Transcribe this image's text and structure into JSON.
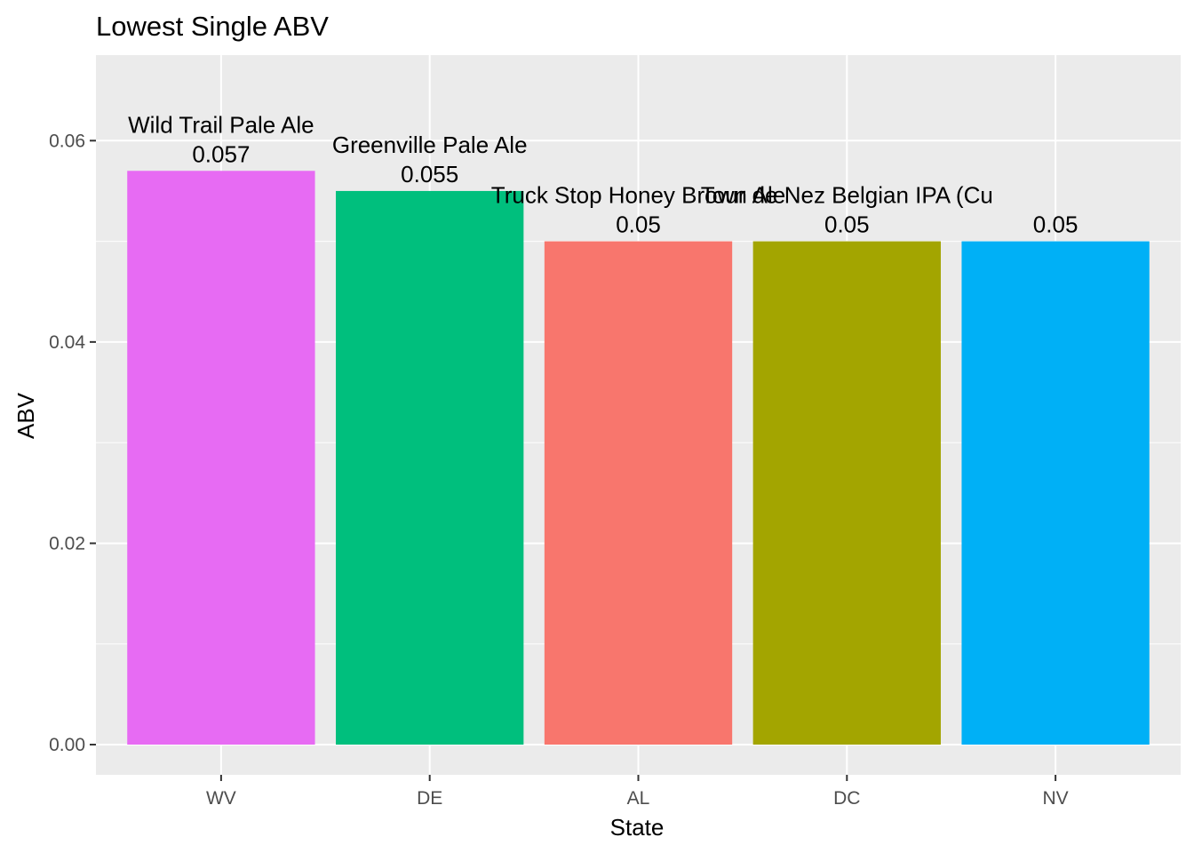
{
  "chart_data": {
    "type": "bar",
    "title": "Lowest Single ABV",
    "xlabel": "State",
    "ylabel": "ABV",
    "categories": [
      "WV",
      "DE",
      "AL",
      "DC",
      "NV"
    ],
    "values": [
      0.057,
      0.055,
      0.05,
      0.05,
      0.05
    ],
    "value_labels": [
      "0.057",
      "0.055",
      "0.05",
      "0.05",
      "0.05"
    ],
    "beer_names": [
      "Wild Trail Pale Ale",
      "Greenville Pale Ale",
      "Truck Stop Honey Brown Ale",
      "Tour de Nez Belgian IPA (Cu",
      ""
    ],
    "colors": [
      "#E76BF3",
      "#00BF7D",
      "#F8766D",
      "#A3A500",
      "#00B0F6"
    ],
    "ylim": [
      -0.003,
      0.0685
    ],
    "yticks": [
      0.0,
      0.02,
      0.04,
      0.06
    ],
    "ytick_labels": [
      "0.00",
      "0.02",
      "0.04",
      "0.06"
    ],
    "grid": true,
    "legend": "none",
    "panel_background": "#EBEBEB",
    "grid_color": "#FFFFFF"
  }
}
